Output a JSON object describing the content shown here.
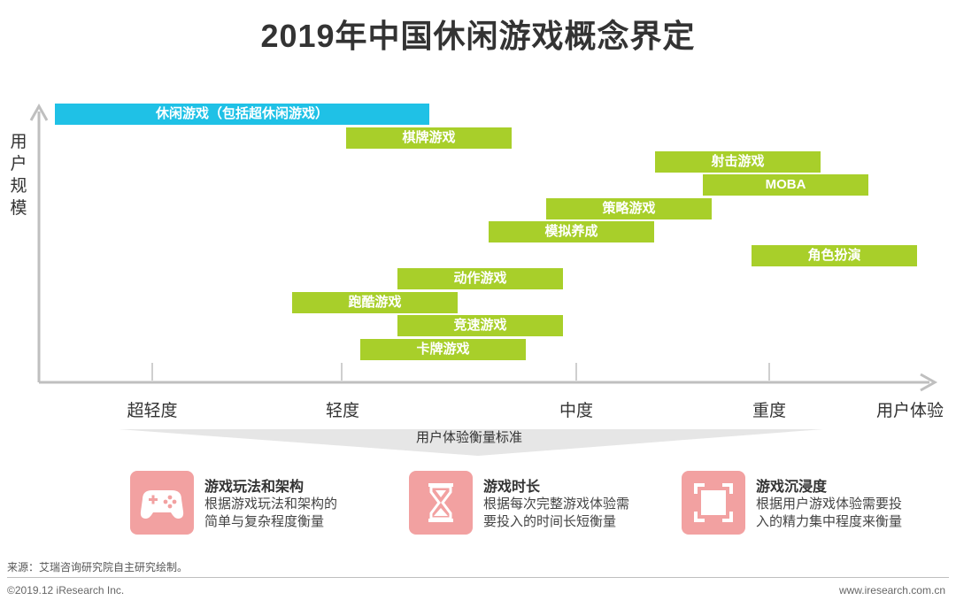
{
  "title": "2019年中国休闲游戏概念界定",
  "y_axis_label": "用户规模",
  "x_axis_label": "用户体验",
  "x_ticks": [
    {
      "label": "超轻度"
    },
    {
      "label": "轻度"
    },
    {
      "label": "中度"
    },
    {
      "label": "重度"
    }
  ],
  "bars": [
    {
      "label": "休闲游戏（包括超休闲游戏）",
      "color": "#1fc1e6"
    },
    {
      "label": "棋牌游戏",
      "color": "#a8cf2a"
    },
    {
      "label": "射击游戏",
      "color": "#a8cf2a"
    },
    {
      "label": "MOBA",
      "color": "#a8cf2a"
    },
    {
      "label": "策略游戏",
      "color": "#a8cf2a"
    },
    {
      "label": "模拟养成",
      "color": "#a8cf2a"
    },
    {
      "label": "角色扮演",
      "color": "#a8cf2a"
    },
    {
      "label": "动作游戏",
      "color": "#a8cf2a"
    },
    {
      "label": "跑酷游戏",
      "color": "#a8cf2a"
    },
    {
      "label": "竞速游戏",
      "color": "#a8cf2a"
    },
    {
      "label": "卡牌游戏",
      "color": "#a8cf2a"
    }
  ],
  "standard_band_label": "用户体验衡量标准",
  "criteria": [
    {
      "title": "游戏玩法和架构",
      "desc": "根据游戏玩法和架构的\n简单与复杂程度衡量",
      "icon": "gamepad-icon"
    },
    {
      "title": "游戏时长",
      "desc": "根据每次完整游戏体验需\n要投入的时间长短衡量",
      "icon": "hourglass-icon"
    },
    {
      "title": "游戏沉浸度",
      "desc": "根据用户游戏体验需要投\n入的精力集中程度来衡量",
      "icon": "immersion-frame-icon"
    }
  ],
  "colors": {
    "casual": "#1fc1e6",
    "genre": "#a8cf2a",
    "icon_bg": "#f2a1a1",
    "axis": "#bfbfbf"
  },
  "source": "来源：艾瑞咨询研究院自主研究绘制。",
  "copyright": "©2019.12 iResearch Inc.",
  "website": "www.iresearch.com.cn"
}
